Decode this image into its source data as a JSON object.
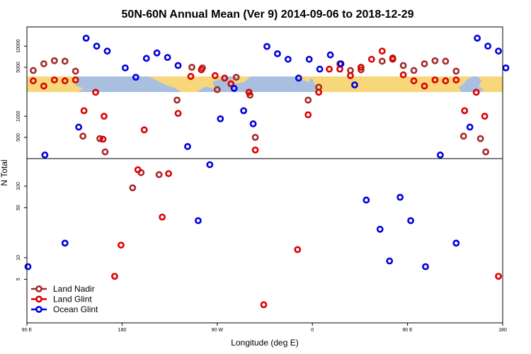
{
  "chart_data": {
    "type": "scatter",
    "title": "50N-60N Annual Mean (Ver 9)   2014-09-06 to 2018-12-29",
    "xlabel": "Longitude (deg E)",
    "ylabel": "N Total",
    "x_ticks": [
      {
        "value": 90,
        "label": "90 E"
      },
      {
        "value": 180,
        "label": "180"
      },
      {
        "value": 270,
        "label": "90 W"
      },
      {
        "value": 360,
        "label": "0"
      },
      {
        "value": 450,
        "label": "90 E"
      },
      {
        "value": 540,
        "label": "180"
      }
    ],
    "xlim": [
      90,
      540
    ],
    "y_scale": "log",
    "upper_panel_ticks": [
      {
        "value": 500,
        "label": "500"
      },
      {
        "value": 1000,
        "label": "1000"
      },
      {
        "value": 5000,
        "label": "5000"
      },
      {
        "value": 10000,
        "label": "10000"
      }
    ],
    "lower_panel_ticks": [
      {
        "value": 5,
        "label": "5"
      },
      {
        "value": 10,
        "label": "10"
      },
      {
        "value": 50,
        "label": "50"
      },
      {
        "value": 100,
        "label": "100"
      }
    ],
    "map_band": {
      "colors": {
        "ocean": "#a8bfe0",
        "land": "#f7d77a"
      }
    },
    "legend": "bottom-left",
    "series": [
      {
        "name": "Land Nadir",
        "color": "#a52a2a",
        "points": [
          [
            96,
            4500
          ],
          [
            106,
            5600
          ],
          [
            116,
            6200
          ],
          [
            126,
            6100
          ],
          [
            136,
            4400
          ],
          [
            143,
            520
          ],
          [
            159,
            480
          ],
          [
            164,
            310
          ],
          [
            190,
            95
          ],
          [
            198,
            155
          ],
          [
            215,
            145
          ],
          [
            232,
            1700
          ],
          [
            246,
            5000
          ],
          [
            256,
            4900
          ],
          [
            270,
            2400
          ],
          [
            288,
            3600
          ],
          [
            301,
            2000
          ],
          [
            306,
            500
          ],
          [
            356,
            1700
          ],
          [
            366,
            2600
          ],
          [
            386,
            5600
          ],
          [
            396,
            4500
          ],
          [
            406,
            4600
          ],
          [
            426,
            6100
          ],
          [
            436,
            6800
          ],
          [
            446,
            5300
          ],
          [
            456,
            4500
          ],
          [
            466,
            5600
          ],
          [
            476,
            6200
          ],
          [
            486,
            6100
          ],
          [
            496,
            4400
          ],
          [
            503,
            520
          ],
          [
            519,
            480
          ],
          [
            524,
            310
          ]
        ]
      },
      {
        "name": "Land Glint",
        "color": "#dd0000",
        "points": [
          [
            96,
            3200
          ],
          [
            106,
            2700
          ],
          [
            116,
            3300
          ],
          [
            126,
            3200
          ],
          [
            136,
            3300
          ],
          [
            144,
            1200
          ],
          [
            155,
            2200
          ],
          [
            162,
            470
          ],
          [
            163,
            1000
          ],
          [
            173,
            5.5
          ],
          [
            179,
            15
          ],
          [
            195,
            170
          ],
          [
            201,
            640
          ],
          [
            218,
            37
          ],
          [
            224,
            150
          ],
          [
            233,
            1100
          ],
          [
            245,
            3700
          ],
          [
            255,
            4600
          ],
          [
            268,
            3800
          ],
          [
            277,
            3500
          ],
          [
            283,
            2900
          ],
          [
            300,
            2200
          ],
          [
            306,
            330
          ],
          [
            314,
            2.2
          ],
          [
            346,
            13
          ],
          [
            356,
            1050
          ],
          [
            366,
            2200
          ],
          [
            376,
            4700
          ],
          [
            386,
            4700
          ],
          [
            396,
            3800
          ],
          [
            406,
            5000
          ],
          [
            416,
            6500
          ],
          [
            426,
            8500
          ],
          [
            436,
            6500
          ],
          [
            446,
            3900
          ],
          [
            456,
            3200
          ],
          [
            466,
            2700
          ],
          [
            476,
            3300
          ],
          [
            486,
            3200
          ],
          [
            496,
            3300
          ],
          [
            504,
            1200
          ],
          [
            515,
            2200
          ],
          [
            523,
            1000
          ],
          [
            536,
            5.5
          ]
        ]
      },
      {
        "name": "Ocean Glint",
        "color": "#0000dd",
        "points": [
          [
            91,
            7.5
          ],
          [
            107,
            280
          ],
          [
            126,
            16
          ],
          [
            139,
            700
          ],
          [
            146,
            13000
          ],
          [
            156,
            10000
          ],
          [
            166,
            8500
          ],
          [
            183,
            4900
          ],
          [
            193,
            3600
          ],
          [
            203,
            6700
          ],
          [
            213,
            8000
          ],
          [
            223,
            6900
          ],
          [
            233,
            5300
          ],
          [
            242,
            370
          ],
          [
            252,
            33
          ],
          [
            263,
            200
          ],
          [
            273,
            920
          ],
          [
            286,
            2500
          ],
          [
            295,
            1200
          ],
          [
            304,
            780
          ],
          [
            317,
            9900
          ],
          [
            327,
            7800
          ],
          [
            337,
            6500
          ],
          [
            347,
            3500
          ],
          [
            357,
            6500
          ],
          [
            367,
            4700
          ],
          [
            377,
            7500
          ],
          [
            387,
            5600
          ],
          [
            400,
            2800
          ],
          [
            411,
            64
          ],
          [
            424,
            25
          ],
          [
            433,
            9
          ],
          [
            443,
            70
          ],
          [
            453,
            33
          ],
          [
            467,
            7.5
          ],
          [
            481,
            280
          ],
          [
            496,
            16
          ],
          [
            509,
            700
          ],
          [
            516,
            13000
          ],
          [
            526,
            10000
          ],
          [
            536,
            8500
          ],
          [
            543,
            4900
          ]
        ]
      }
    ]
  }
}
